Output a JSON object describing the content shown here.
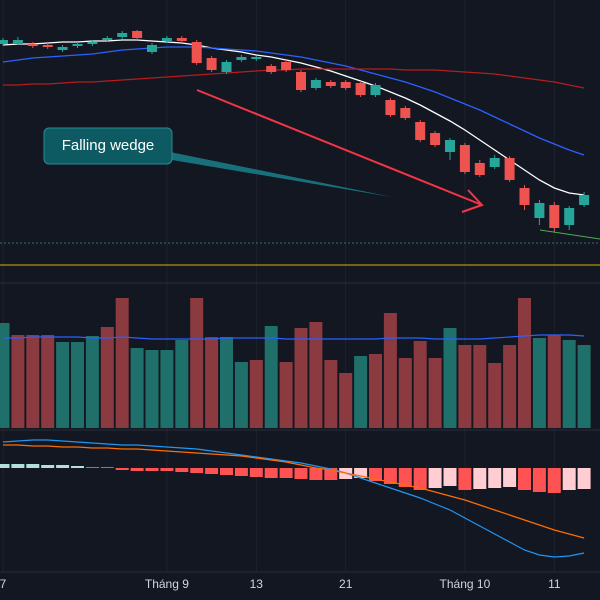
{
  "chart_data": [
    {
      "type": "candlestick",
      "categories": [
        "7",
        null,
        null,
        null,
        null,
        null,
        null,
        null,
        null,
        null,
        null,
        "Tháng 9",
        null,
        null,
        null,
        null,
        null,
        "13",
        null,
        null,
        null,
        null,
        null,
        "21",
        null,
        null,
        null,
        null,
        null,
        null,
        null,
        "Tháng 10",
        null,
        null,
        null,
        null,
        null,
        "11",
        null,
        null
      ],
      "open": [
        226,
        226,
        226,
        225,
        220,
        224,
        226,
        230,
        233,
        239,
        218,
        229,
        232,
        228,
        212,
        198,
        210,
        211,
        204,
        208,
        198,
        182,
        188,
        188,
        187,
        175,
        170,
        162,
        148,
        137,
        118,
        125,
        107,
        103,
        112,
        82,
        52,
        65,
        45,
        65
      ],
      "high": [
        232,
        233,
        228,
        227,
        225,
        228,
        230,
        234,
        239,
        240,
        227,
        234,
        234,
        230,
        214,
        210,
        215,
        214,
        206,
        210,
        200,
        192,
        190,
        190,
        189,
        187,
        172,
        164,
        150,
        139,
        132,
        127,
        110,
        115,
        114,
        85,
        70,
        68,
        64,
        78
      ],
      "low": [
        224,
        225,
        222,
        221,
        218,
        222,
        224,
        228,
        231,
        230,
        216,
        227,
        227,
        205,
        198,
        196,
        208,
        209,
        196,
        198,
        178,
        180,
        182,
        180,
        173,
        173,
        153,
        150,
        128,
        123,
        110,
        96,
        93,
        101,
        88,
        60,
        45,
        38,
        40,
        63
      ],
      "close": [
        230,
        230,
        224,
        223,
        223,
        226,
        228,
        232,
        237,
        232,
        225,
        232,
        229,
        207,
        200,
        208,
        213,
        213,
        198,
        200,
        180,
        190,
        184,
        182,
        175,
        185,
        155,
        152,
        130,
        125,
        130,
        98,
        95,
        112,
        90,
        65,
        67,
        42,
        62,
        75
      ],
      "up_color": "#26a69a",
      "down_color": "#ef5350",
      "lines": [
        {
          "color": "#ffffff",
          "values": [
            225,
            226,
            226,
            227,
            228,
            228,
            229,
            229,
            230,
            230,
            229,
            228,
            227,
            225,
            222,
            220,
            218,
            215,
            213,
            210,
            207,
            203,
            199,
            194,
            189,
            184,
            178,
            172,
            165,
            157,
            149,
            140,
            130,
            120,
            110,
            100,
            90,
            82,
            77,
            75
          ]
        },
        {
          "color": "#2962ff",
          "values": [
            208,
            210,
            212,
            213,
            214,
            215,
            216,
            218,
            220,
            221,
            222,
            223,
            223,
            223,
            222,
            221,
            220,
            219,
            217,
            215,
            213,
            210,
            207,
            204,
            200,
            196,
            192,
            188,
            183,
            178,
            172,
            166,
            160,
            153,
            146,
            139,
            132,
            126,
            120,
            115
          ]
        },
        {
          "color": "#b71c1c",
          "values": [
            185,
            185,
            186,
            186,
            187,
            188,
            188,
            189,
            190,
            191,
            192,
            193,
            194,
            195,
            196,
            197,
            198,
            199,
            200,
            200,
            201,
            201,
            201,
            201,
            201,
            201,
            201,
            200,
            200,
            200,
            199,
            198,
            197,
            196,
            194,
            192,
            190,
            188,
            185,
            182
          ]
        }
      ],
      "annotation": "Falling wedge",
      "ylim": [
        0,
        270
      ],
      "grid": true
    },
    {
      "type": "volume",
      "values": [
        105,
        93,
        93,
        93,
        86,
        86,
        92,
        101,
        130,
        80,
        78,
        78,
        88,
        130,
        91,
        91,
        66,
        68,
        102,
        66,
        100,
        106,
        68,
        55,
        72,
        74,
        115,
        70,
        87,
        70,
        100,
        83,
        83,
        65,
        83,
        130,
        90,
        93,
        88,
        83
      ],
      "colors": [
        "#1f6f6a",
        "#8b3a3f",
        "#8b3a3f",
        "#8b3a3f",
        "#1f6f6a",
        "#1f6f6a",
        "#1f6f6a",
        "#8b3a3f",
        "#8b3a3f",
        "#1f6f6a",
        "#1f6f6a",
        "#1f6f6a",
        "#1f6f6a",
        "#8b3a3f",
        "#8b3a3f",
        "#1f6f6a",
        "#1f6f6a",
        "#8b3a3f",
        "#1f6f6a",
        "#8b3a3f",
        "#8b3a3f",
        "#8b3a3f",
        "#8b3a3f",
        "#8b3a3f",
        "#1f6f6a",
        "#8b3a3f",
        "#8b3a3f",
        "#8b3a3f",
        "#8b3a3f",
        "#8b3a3f",
        "#1f6f6a",
        "#8b3a3f",
        "#8b3a3f",
        "#8b3a3f",
        "#8b3a3f",
        "#8b3a3f",
        "#1f6f6a",
        "#8b3a3f",
        "#1f6f6a",
        "#1f6f6a"
      ],
      "ma": {
        "color": "#2962ff",
        "values": [
          90,
          90,
          91,
          91,
          91,
          91,
          90,
          90,
          91,
          90,
          89,
          89,
          89,
          89,
          89,
          90,
          90,
          90,
          90,
          89,
          89,
          89,
          89,
          89,
          89,
          89,
          90,
          90,
          90,
          89,
          89,
          89,
          89,
          90,
          91,
          92,
          93,
          93,
          93,
          92
        ]
      },
      "ylim": [
        0,
        143
      ]
    },
    {
      "type": "macd",
      "histogram": [
        4,
        4,
        4,
        3,
        3,
        2,
        1,
        1,
        -2,
        -3,
        -3,
        -3,
        -4,
        -5,
        -6,
        -7,
        -8,
        -9,
        -10,
        -10,
        -11,
        -12,
        -12,
        -11,
        -10,
        -13,
        -16,
        -19,
        -22,
        -20,
        -18,
        -22,
        -21,
        -20,
        -19,
        -22,
        -24,
        -25,
        -22,
        -21
      ],
      "histogram_colors": [
        "#b2dfdb",
        "#b2dfdb",
        "#b2dfdb",
        "#b2dfdb",
        "#b2dfdb",
        "#b2dfdb",
        "#26a69a",
        "#26a69a",
        "#ff5252",
        "#ff5252",
        "#ff5252",
        "#ff5252",
        "#ff5252",
        "#ff5252",
        "#ff5252",
        "#ff5252",
        "#ff5252",
        "#ff5252",
        "#ff5252",
        "#ff5252",
        "#ff5252",
        "#ff5252",
        "#ff5252",
        "#ffcdd2",
        "#ffcdd2",
        "#ff5252",
        "#ff5252",
        "#ff5252",
        "#ff5252",
        "#ffcdd2",
        "#ffcdd2",
        "#ff5252",
        "#ffcdd2",
        "#ffcdd2",
        "#ffcdd2",
        "#ff5252",
        "#ff5252",
        "#ff5252",
        "#ffcdd2",
        "#ffcdd2"
      ],
      "lines": [
        {
          "color": "#2196f3",
          "values": [
            26,
            27,
            28,
            28,
            27,
            26,
            25,
            24,
            23,
            23,
            22,
            21,
            20,
            19,
            17,
            15,
            13,
            11,
            9,
            7,
            5,
            2,
            -1,
            -5,
            -10,
            -15,
            -20,
            -25,
            -30,
            -36,
            -42,
            -50,
            -58,
            -66,
            -74,
            -82,
            -87,
            -89,
            -88,
            -85
          ]
        },
        {
          "color": "#ff6d00",
          "values": [
            23,
            23,
            22,
            22,
            21,
            21,
            20,
            20,
            19,
            19,
            18,
            17,
            16,
            15,
            14,
            13,
            12,
            10,
            8,
            6,
            3,
            0,
            -2,
            -5,
            -8,
            -11,
            -14,
            -17,
            -20,
            -24,
            -28,
            -32,
            -37,
            -42,
            -47,
            -52,
            -57,
            -62,
            -66,
            -70
          ]
        }
      ],
      "ylim": [
        -102,
        36
      ]
    }
  ]
}
